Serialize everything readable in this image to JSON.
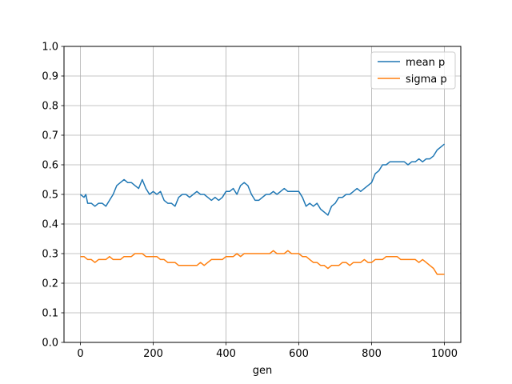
{
  "chart_data": {
    "type": "line",
    "title": "",
    "xlabel": "gen",
    "ylabel": "",
    "xlim": [
      -45,
      1045
    ],
    "ylim": [
      0.0,
      1.0
    ],
    "xticks": [
      0,
      200,
      400,
      600,
      800,
      1000
    ],
    "xtick_labels": [
      "0",
      "200",
      "400",
      "600",
      "800",
      "1000"
    ],
    "yticks": [
      0.0,
      0.1,
      0.2,
      0.3,
      0.4,
      0.5,
      0.6,
      0.7,
      0.8,
      0.9,
      1.0
    ],
    "ytick_labels": [
      "0.0",
      "0.1",
      "0.2",
      "0.3",
      "0.4",
      "0.5",
      "0.6",
      "0.7",
      "0.8",
      "0.9",
      "1.0"
    ],
    "grid": true,
    "legend_position": "top-right",
    "series": [
      {
        "name": "mean p",
        "color": "#1f77b4",
        "x": [
          0,
          10,
          15,
          20,
          30,
          40,
          50,
          60,
          70,
          80,
          90,
          100,
          110,
          120,
          130,
          140,
          150,
          160,
          170,
          180,
          190,
          200,
          210,
          220,
          230,
          240,
          250,
          260,
          270,
          280,
          290,
          300,
          310,
          320,
          330,
          340,
          350,
          360,
          370,
          380,
          390,
          400,
          410,
          420,
          430,
          440,
          450,
          460,
          470,
          480,
          490,
          500,
          510,
          520,
          530,
          540,
          550,
          560,
          570,
          580,
          590,
          600,
          610,
          620,
          630,
          640,
          650,
          660,
          670,
          680,
          690,
          700,
          710,
          720,
          730,
          740,
          750,
          760,
          770,
          780,
          790,
          800,
          810,
          820,
          830,
          840,
          850,
          860,
          870,
          880,
          890,
          900,
          910,
          920,
          930,
          940,
          950,
          960,
          970,
          980,
          990,
          1000
        ],
        "values": [
          0.5,
          0.49,
          0.5,
          0.47,
          0.47,
          0.46,
          0.47,
          0.47,
          0.46,
          0.48,
          0.5,
          0.53,
          0.54,
          0.55,
          0.54,
          0.54,
          0.53,
          0.52,
          0.55,
          0.52,
          0.5,
          0.51,
          0.5,
          0.51,
          0.48,
          0.47,
          0.47,
          0.46,
          0.49,
          0.5,
          0.5,
          0.49,
          0.5,
          0.51,
          0.5,
          0.5,
          0.49,
          0.48,
          0.49,
          0.48,
          0.49,
          0.51,
          0.51,
          0.52,
          0.5,
          0.53,
          0.54,
          0.53,
          0.5,
          0.48,
          0.48,
          0.49,
          0.5,
          0.5,
          0.51,
          0.5,
          0.51,
          0.52,
          0.51,
          0.51,
          0.51,
          0.51,
          0.49,
          0.46,
          0.47,
          0.46,
          0.47,
          0.45,
          0.44,
          0.43,
          0.46,
          0.47,
          0.49,
          0.49,
          0.5,
          0.5,
          0.51,
          0.52,
          0.51,
          0.52,
          0.53,
          0.54,
          0.57,
          0.58,
          0.6,
          0.6,
          0.61,
          0.61,
          0.61,
          0.61,
          0.61,
          0.6,
          0.61,
          0.61,
          0.62,
          0.61,
          0.62,
          0.62,
          0.63,
          0.65,
          0.66,
          0.67
        ]
      },
      {
        "name": "sigma p",
        "color": "#ff7f0e",
        "x": [
          0,
          10,
          20,
          30,
          40,
          50,
          60,
          70,
          80,
          90,
          100,
          110,
          120,
          130,
          140,
          150,
          160,
          170,
          180,
          190,
          200,
          210,
          220,
          230,
          240,
          250,
          260,
          270,
          280,
          290,
          300,
          310,
          320,
          330,
          340,
          350,
          360,
          370,
          380,
          390,
          400,
          410,
          420,
          430,
          440,
          450,
          460,
          470,
          480,
          490,
          500,
          510,
          520,
          530,
          540,
          550,
          560,
          570,
          580,
          590,
          600,
          610,
          620,
          630,
          640,
          650,
          660,
          670,
          680,
          690,
          700,
          710,
          720,
          730,
          740,
          750,
          760,
          770,
          780,
          790,
          800,
          810,
          820,
          830,
          840,
          850,
          860,
          870,
          880,
          890,
          900,
          910,
          920,
          930,
          940,
          950,
          960,
          970,
          980,
          990,
          1000
        ],
        "values": [
          0.29,
          0.29,
          0.28,
          0.28,
          0.27,
          0.28,
          0.28,
          0.28,
          0.29,
          0.28,
          0.28,
          0.28,
          0.29,
          0.29,
          0.29,
          0.3,
          0.3,
          0.3,
          0.29,
          0.29,
          0.29,
          0.29,
          0.28,
          0.28,
          0.27,
          0.27,
          0.27,
          0.26,
          0.26,
          0.26,
          0.26,
          0.26,
          0.26,
          0.27,
          0.26,
          0.27,
          0.28,
          0.28,
          0.28,
          0.28,
          0.29,
          0.29,
          0.29,
          0.3,
          0.29,
          0.3,
          0.3,
          0.3,
          0.3,
          0.3,
          0.3,
          0.3,
          0.3,
          0.31,
          0.3,
          0.3,
          0.3,
          0.31,
          0.3,
          0.3,
          0.3,
          0.29,
          0.29,
          0.28,
          0.27,
          0.27,
          0.26,
          0.26,
          0.25,
          0.26,
          0.26,
          0.26,
          0.27,
          0.27,
          0.26,
          0.27,
          0.27,
          0.27,
          0.28,
          0.27,
          0.27,
          0.28,
          0.28,
          0.28,
          0.29,
          0.29,
          0.29,
          0.29,
          0.28,
          0.28,
          0.28,
          0.28,
          0.28,
          0.27,
          0.28,
          0.27,
          0.26,
          0.25,
          0.23,
          0.23,
          0.23
        ]
      }
    ]
  }
}
